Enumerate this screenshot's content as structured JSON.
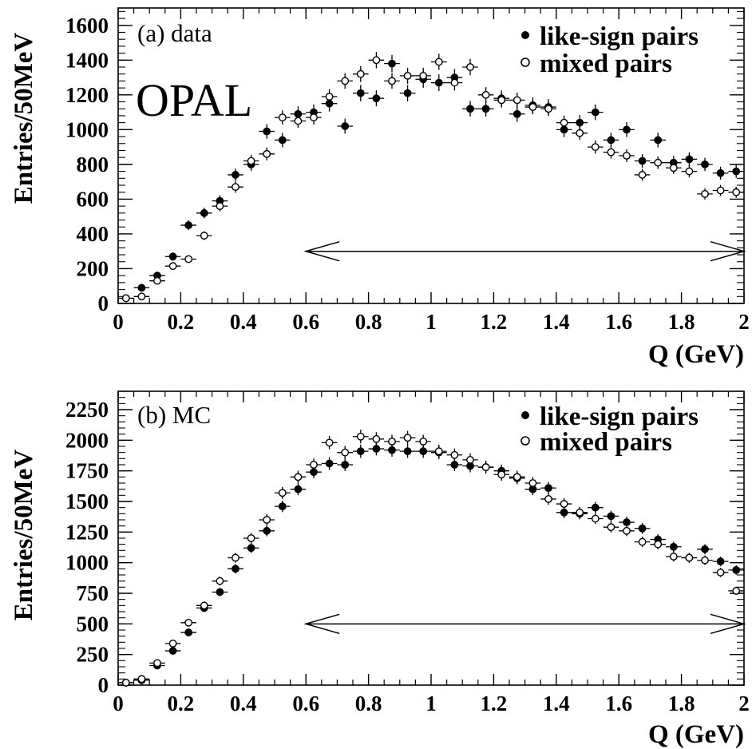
{
  "chart_data": [
    {
      "type": "scatter",
      "panel_label": "(a) data",
      "watermark": "OPAL",
      "xlabel": "Q (GeV)",
      "ylabel": "Entries/50MeV",
      "xlim": [
        0,
        2
      ],
      "ylim": [
        0,
        1700
      ],
      "x_ticks": [
        "0",
        "0.2",
        "0.4",
        "0.6",
        "0.8",
        "1",
        "1.2",
        "1.4",
        "1.6",
        "1.8",
        "2"
      ],
      "y_ticks": [
        0,
        200,
        400,
        600,
        800,
        1000,
        1200,
        1400,
        1600
      ],
      "y_tick_labels": [
        "0",
        "200",
        "400",
        "600",
        "800",
        "1000",
        "1200",
        "1400",
        "1600"
      ],
      "legend_position": "top-right",
      "range_arrow": {
        "from": 0.6,
        "to": 2.0,
        "y": 300
      },
      "x": [
        0.025,
        0.075,
        0.125,
        0.175,
        0.225,
        0.275,
        0.325,
        0.375,
        0.425,
        0.475,
        0.525,
        0.575,
        0.625,
        0.675,
        0.725,
        0.775,
        0.825,
        0.875,
        0.925,
        0.975,
        1.025,
        1.075,
        1.125,
        1.175,
        1.225,
        1.275,
        1.325,
        1.375,
        1.425,
        1.475,
        1.525,
        1.575,
        1.625,
        1.675,
        1.725,
        1.775,
        1.825,
        1.875,
        1.925,
        1.975
      ],
      "series": [
        {
          "name": "like-sign pairs",
          "marker": "filled",
          "values": [
            30,
            90,
            160,
            270,
            450,
            520,
            590,
            740,
            800,
            990,
            940,
            1090,
            1100,
            1150,
            1020,
            1210,
            1180,
            1380,
            1210,
            1290,
            1270,
            1300,
            1120,
            1120,
            1180,
            1090,
            1140,
            1130,
            1000,
            1040,
            1100,
            940,
            1000,
            820,
            940,
            810,
            830,
            800,
            750,
            760
          ],
          "errors": [
            8,
            14,
            18,
            24,
            28,
            31,
            33,
            36,
            38,
            42,
            41,
            44,
            45,
            46,
            43,
            47,
            46,
            50,
            47,
            49,
            48,
            49,
            45,
            45,
            46,
            45,
            46,
            46,
            43,
            44,
            45,
            42,
            43,
            39,
            42,
            39,
            39,
            38,
            37,
            37
          ]
        },
        {
          "name": "mixed pairs",
          "marker": "open",
          "values": [
            30,
            40,
            130,
            215,
            255,
            390,
            560,
            670,
            820,
            860,
            1070,
            1050,
            1070,
            1190,
            1280,
            1320,
            1400,
            1280,
            1310,
            1310,
            1390,
            1270,
            1360,
            1200,
            1170,
            1170,
            1130,
            1120,
            1040,
            980,
            900,
            870,
            850,
            740,
            810,
            780,
            760,
            630,
            650,
            640
          ],
          "errors": [
            7,
            8,
            14,
            18,
            20,
            25,
            30,
            33,
            36,
            37,
            41,
            40,
            41,
            43,
            45,
            46,
            47,
            45,
            46,
            46,
            47,
            45,
            47,
            44,
            43,
            43,
            42,
            42,
            41,
            39,
            38,
            37,
            37,
            34,
            36,
            35,
            35,
            32,
            32,
            32
          ]
        }
      ]
    },
    {
      "type": "scatter",
      "panel_label": "(b) MC",
      "xlabel": "Q (GeV)",
      "ylabel": "Entries/50MeV",
      "xlim": [
        0,
        2
      ],
      "ylim": [
        0,
        2400
      ],
      "x_ticks": [
        "0",
        "0.2",
        "0.4",
        "0.6",
        "0.8",
        "1",
        "1.2",
        "1.4",
        "1.6",
        "1.8",
        "2"
      ],
      "y_ticks": [
        0,
        250,
        500,
        750,
        1000,
        1250,
        1500,
        1750,
        2000,
        2250
      ],
      "y_tick_labels": [
        "0",
        "250",
        "500",
        "750",
        "1000",
        "1250",
        "1500",
        "1750",
        "2000",
        "2250"
      ],
      "legend_position": "top-right",
      "range_arrow": {
        "from": 0.6,
        "to": 2.0,
        "y": 500
      },
      "x": [
        0.025,
        0.075,
        0.125,
        0.175,
        0.225,
        0.275,
        0.325,
        0.375,
        0.425,
        0.475,
        0.525,
        0.575,
        0.625,
        0.675,
        0.725,
        0.775,
        0.825,
        0.875,
        0.925,
        0.975,
        1.025,
        1.075,
        1.125,
        1.175,
        1.225,
        1.275,
        1.325,
        1.375,
        1.425,
        1.475,
        1.525,
        1.575,
        1.625,
        1.675,
        1.725,
        1.775,
        1.825,
        1.875,
        1.925,
        1.975
      ],
      "series": [
        {
          "name": "like-sign pairs",
          "marker": "filled",
          "values": [
            20,
            40,
            160,
            280,
            430,
            630,
            760,
            950,
            1120,
            1260,
            1460,
            1600,
            1740,
            1810,
            1800,
            1910,
            1930,
            1920,
            1910,
            1910,
            1900,
            1800,
            1790,
            1780,
            1750,
            1690,
            1600,
            1610,
            1410,
            1400,
            1450,
            1380,
            1330,
            1280,
            1190,
            1130,
            1040,
            1110,
            1010,
            940
          ],
          "errors": [
            6,
            9,
            16,
            21,
            26,
            31,
            34,
            38,
            41,
            44,
            47,
            49,
            51,
            52,
            52,
            54,
            54,
            54,
            54,
            54,
            54,
            52,
            52,
            52,
            51,
            50,
            49,
            49,
            46,
            46,
            47,
            45,
            45,
            44,
            42,
            41,
            40,
            41,
            39,
            38
          ]
        },
        {
          "name": "mixed pairs",
          "marker": "open",
          "values": [
            20,
            50,
            180,
            340,
            510,
            650,
            850,
            1040,
            1200,
            1350,
            1570,
            1700,
            1800,
            1980,
            1900,
            2030,
            2010,
            1990,
            2020,
            1990,
            1910,
            1880,
            1840,
            1780,
            1720,
            1700,
            1650,
            1520,
            1480,
            1410,
            1360,
            1290,
            1260,
            1170,
            1150,
            1050,
            1040,
            1020,
            920,
            770
          ],
          "errors": [
            6,
            10,
            17,
            23,
            28,
            32,
            36,
            40,
            43,
            46,
            49,
            51,
            52,
            55,
            54,
            56,
            56,
            55,
            56,
            55,
            54,
            53,
            53,
            52,
            51,
            51,
            50,
            48,
            47,
            46,
            45,
            44,
            43,
            42,
            41,
            40,
            40,
            39,
            37,
            34
          ]
        }
      ]
    }
  ]
}
